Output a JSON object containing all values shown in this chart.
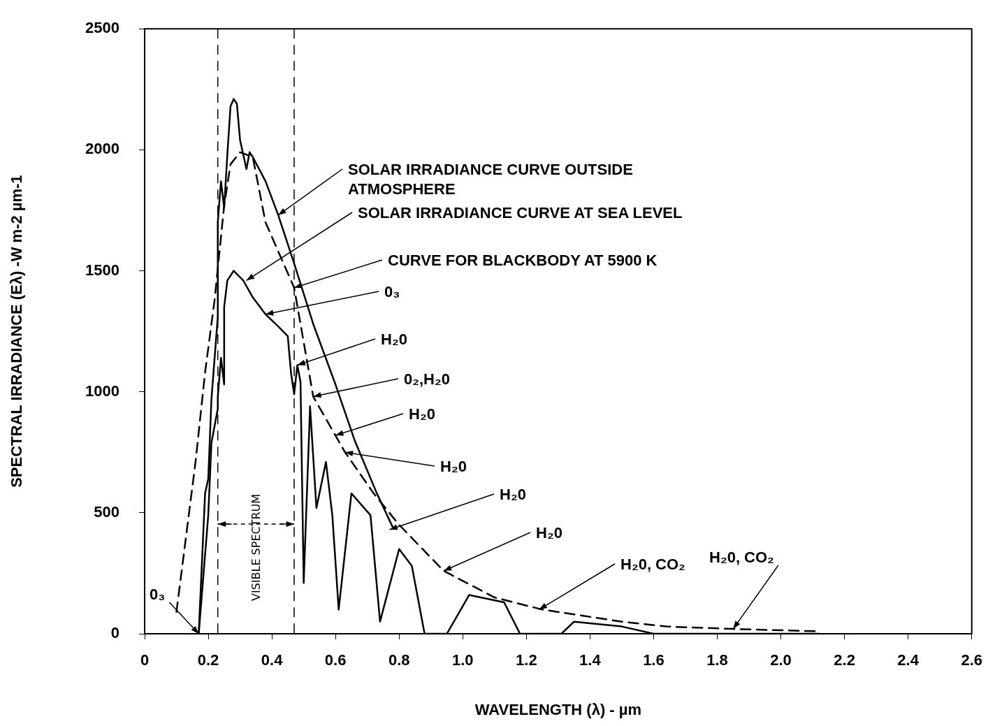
{
  "chart_data": {
    "type": "line",
    "xlabel": "WAVELENGTH (λ) - µm",
    "ylabel": "SPECTRAL IRRADIANCE (Eλ) -W m-2 µm-1",
    "xlim": [
      0,
      2.6
    ],
    "ylim": [
      0,
      2500
    ],
    "xticks": [
      0,
      0.2,
      0.4,
      0.6,
      0.8,
      {
        "value": 1,
        "label": "1.0"
      },
      1.2,
      1.4,
      1.6,
      1.8,
      {
        "value": 2,
        "label": "2.0"
      },
      2.2,
      2.4,
      2.6
    ],
    "yticks": [
      0,
      500,
      1000,
      1500,
      2000,
      2500
    ],
    "grid": false,
    "legend": false,
    "marker": "none",
    "series": [
      {
        "color": "#000000",
        "line_style": "solid",
        "x": [
          0.17,
          0.2,
          0.21,
          0.23,
          0.23,
          0.24,
          0.25,
          0.25,
          0.26,
          0.28,
          0.31,
          0.34,
          0.38,
          0.42,
          0.45,
          0.46,
          0.47,
          0.48,
          0.49,
          0.5,
          0.52,
          0.54,
          0.57,
          0.59,
          0.61,
          0.65,
          0.71,
          0.74,
          0.8,
          0.84,
          0.88,
          0.95,
          1.02,
          1.13,
          1.18,
          1.31,
          1.35,
          1.5,
          1.6,
          2.12
        ],
        "values": [
          0,
          490,
          790,
          930,
          980,
          1140,
          1030,
          1350,
          1460,
          1500,
          1460,
          1390,
          1320,
          1270,
          1230,
          1080,
          990,
          1110,
          1040,
          210,
          940,
          520,
          710,
          490,
          100,
          580,
          490,
          50,
          350,
          280,
          0,
          0,
          160,
          130,
          0,
          0,
          50,
          30,
          0,
          0
        ]
      },
      {
        "color": "#000000",
        "line_style": "solid",
        "x": [
          0.17,
          0.19,
          0.2,
          0.21,
          0.23,
          0.23,
          0.24,
          0.25,
          0.26,
          0.27,
          0.28,
          0.29,
          0.3,
          0.31,
          0.32,
          0.33,
          0.34,
          0.38,
          0.42,
          0.47,
          0.53,
          0.6,
          0.66,
          0.73,
          0.78
        ],
        "values": [
          0,
          580,
          640,
          970,
          1310,
          1700,
          1870,
          1760,
          1980,
          2180,
          2210,
          2190,
          2040,
          1980,
          1920,
          1990,
          1970,
          1870,
          1730,
          1530,
          1280,
          1030,
          800,
          580,
          440
        ]
      },
      {
        "color": "#000000",
        "line_style": "dashed",
        "x": [
          0.1,
          0.16,
          0.19,
          0.22,
          0.25,
          0.27,
          0.3,
          0.34,
          0.38,
          0.47,
          0.53,
          0.63,
          0.72,
          0.8,
          0.94,
          1.1,
          1.25,
          1.35,
          1.5,
          1.64,
          1.85,
          2.12
        ],
        "values": [
          90,
          710,
          1080,
          1380,
          1770,
          1940,
          1990,
          1970,
          1700,
          1430,
          980,
          750,
          580,
          450,
          260,
          150,
          100,
          80,
          50,
          30,
          20,
          10
        ]
      }
    ],
    "ref_lines": [
      {
        "axis": "x",
        "value": 0.23,
        "line_style": "dashed"
      },
      {
        "axis": "x",
        "value": 0.47,
        "line_style": "dashed"
      }
    ],
    "annotations": [
      {
        "text": "SOLAR IRRADIANCE CURVE OUTSIDE ATMOSPHERE",
        "x": 0.42,
        "y": 1730
      },
      {
        "text": "SOLAR IRRADIANCE CURVE AT SEA LEVEL",
        "x": 0.32,
        "y": 1460
      },
      {
        "text": "CURVE FOR BLACKBODY AT 5900 K",
        "x": 0.47,
        "y": 1430
      },
      {
        "text": "0₃",
        "x": 0.38,
        "y": 1320
      },
      {
        "text": "H₂0",
        "x": 0.48,
        "y": 1110
      },
      {
        "text": "0₂,H₂0",
        "x": 0.53,
        "y": 980
      },
      {
        "text": "H₂0",
        "x": 0.6,
        "y": 820
      },
      {
        "text": "H₂0",
        "x": 0.63,
        "y": 750
      },
      {
        "text": "H₂0",
        "x": 0.77,
        "y": 430
      },
      {
        "text": "H₂0",
        "x": 0.94,
        "y": 260
      },
      {
        "text": "H₂0, CO₂",
        "x": 1.24,
        "y": 100
      },
      {
        "text": "H₂0, CO₂",
        "x": 1.85,
        "y": 20
      },
      {
        "text": "0₃",
        "x": 0.17,
        "y": 0
      },
      "VISIBLE SPECTRUM"
    ]
  }
}
